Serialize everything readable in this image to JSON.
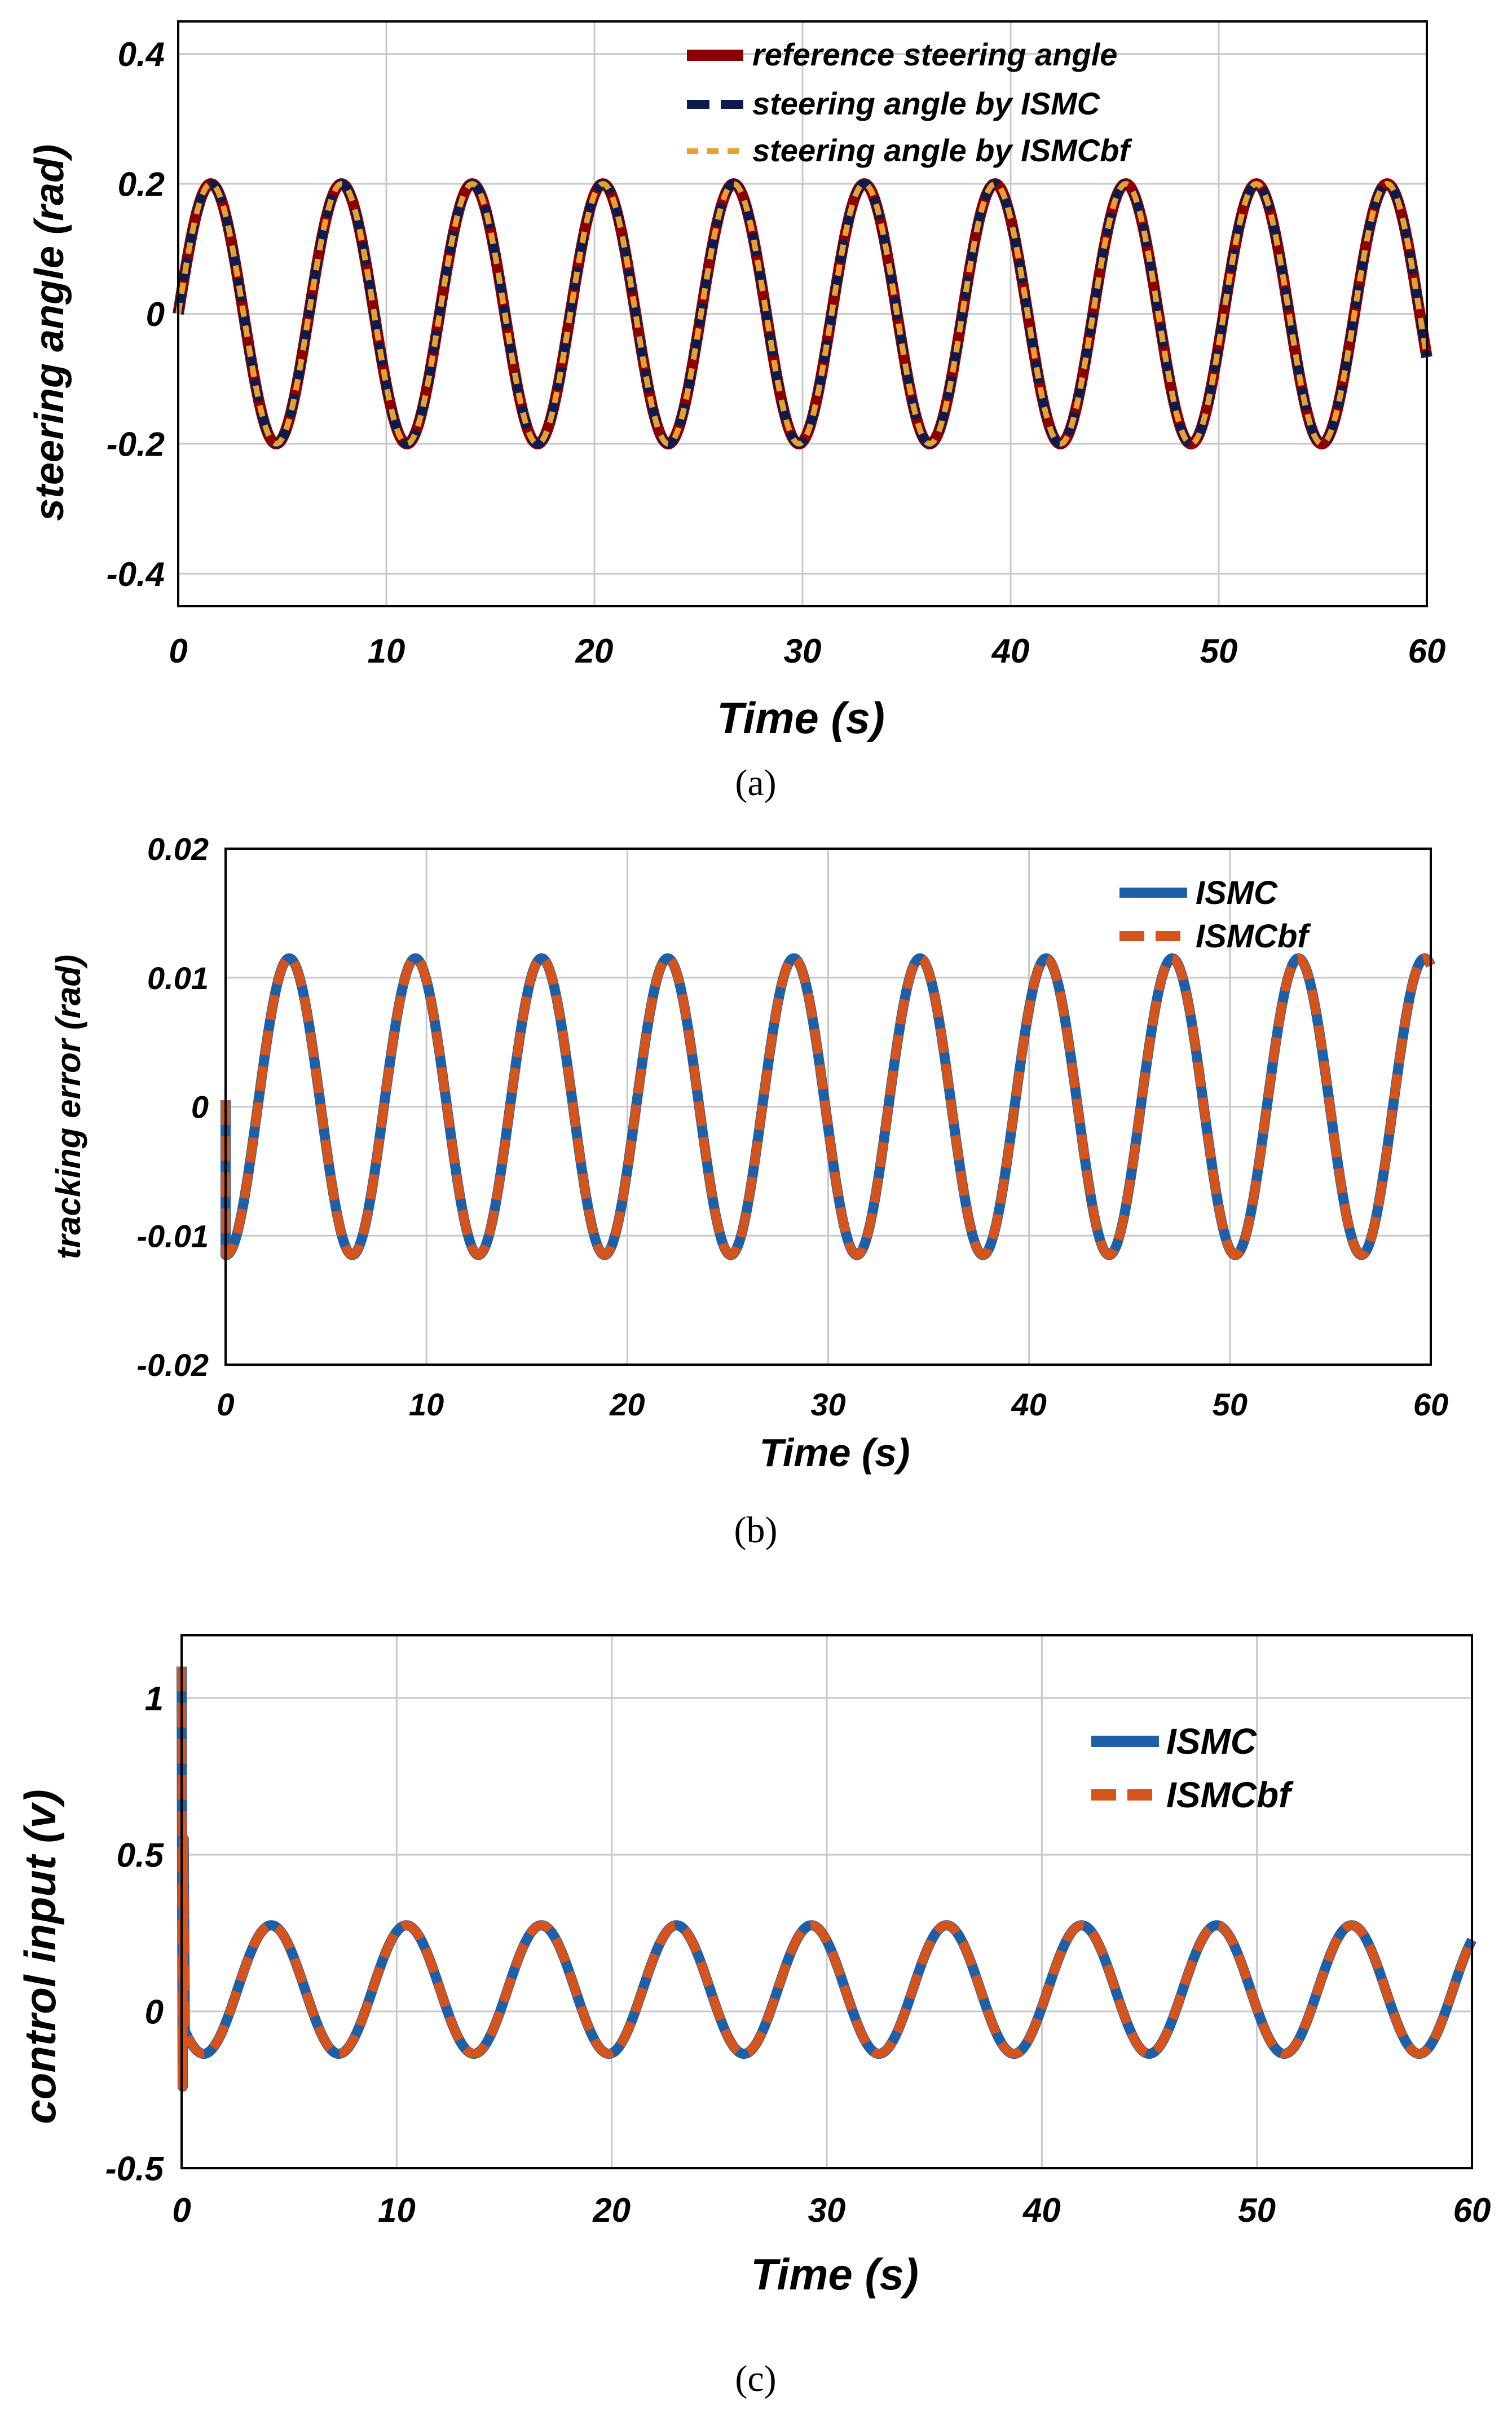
{
  "colors": {
    "reference": "#8b0000",
    "ismc_a": "#0d1a4d",
    "ismcbf_a": "#e8a030",
    "ismc": "#1f5fa8",
    "ismcbf": "#d4541c",
    "grid": "#c8c8c8"
  },
  "chart_data": [
    {
      "id": "a",
      "type": "line",
      "caption": "(a)",
      "xlabel": "Time (s)",
      "ylabel": "steering angle (rad)",
      "xlim": [
        0,
        60
      ],
      "ylim": [
        -0.45,
        0.45
      ],
      "xticks": [
        0,
        10,
        20,
        30,
        40,
        50,
        60
      ],
      "xtick_labels": [
        "0",
        "10",
        "20",
        "30",
        "40",
        "50",
        "60"
      ],
      "yticks": [
        0.4,
        0.2,
        0,
        -0.2,
        -0.4
      ],
      "ytick_labels": [
        "0.4",
        "0.2",
        "0",
        "-0.2",
        "-0.4"
      ],
      "legend_position": "top-center",
      "series": [
        {
          "name": "reference steering angle",
          "model": "sine",
          "amplitude": 0.2,
          "period_s": 6.28,
          "phase": 0,
          "style": "solid",
          "color": "#8b0000"
        },
        {
          "name": "steering angle by ISMC",
          "model": "sine",
          "amplitude": 0.2,
          "period_s": 6.28,
          "phase": 0,
          "style": "dashed",
          "color": "#0d1a4d"
        },
        {
          "name": "steering angle by ISMCbf",
          "model": "sine",
          "amplitude": 0.2,
          "period_s": 6.28,
          "phase": 0,
          "style": "dashed",
          "color": "#e8a030"
        }
      ]
    },
    {
      "id": "b",
      "type": "line",
      "caption": "(b)",
      "xlabel": "Time (s)",
      "ylabel": "tracking error (rad)",
      "xlim": [
        0,
        60
      ],
      "ylim": [
        -0.02,
        0.02
      ],
      "xticks": [
        0,
        10,
        20,
        30,
        40,
        50,
        60
      ],
      "xtick_labels": [
        "0",
        "10",
        "20",
        "30",
        "40",
        "50",
        "60"
      ],
      "yticks": [
        0.02,
        0.01,
        0,
        -0.01,
        -0.02
      ],
      "ytick_labels": [
        "0.02",
        "0.01",
        "0",
        "-0.01",
        "-0.02"
      ],
      "legend_position": "top-right",
      "series": [
        {
          "name": "ISMC",
          "model": "sine",
          "amplitude": 0.0115,
          "period_s": 6.28,
          "phase": -1.6,
          "style": "solid",
          "color": "#1f5fa8"
        },
        {
          "name": "ISMCbf",
          "model": "sine",
          "amplitude": 0.0115,
          "period_s": 6.28,
          "phase": -1.6,
          "style": "dashed",
          "color": "#d4541c"
        }
      ]
    },
    {
      "id": "c",
      "type": "line",
      "caption": "(c)",
      "xlabel": "Time (s)",
      "ylabel": "control input (v)",
      "xlim": [
        0,
        60
      ],
      "ylim": [
        -0.5,
        1.2
      ],
      "xticks": [
        0,
        10,
        20,
        30,
        40,
        50,
        60
      ],
      "xtick_labels": [
        "0",
        "10",
        "20",
        "30",
        "40",
        "50",
        "60"
      ],
      "yticks": [
        1,
        0.5,
        0,
        -0.5
      ],
      "ytick_labels": [
        "1",
        "0.5",
        "0",
        "-0.5"
      ],
      "legend_position": "right",
      "initial_spike": {
        "max": 1.1,
        "min": -0.24
      },
      "series": [
        {
          "name": "ISMC",
          "model": "offset_sine",
          "amplitude": 0.205,
          "offset": 0.07,
          "period_s": 6.28,
          "phase": -2.6,
          "style": "solid",
          "color": "#1f5fa8"
        },
        {
          "name": "ISMCbf",
          "model": "offset_sine",
          "amplitude": 0.205,
          "offset": 0.07,
          "period_s": 6.28,
          "phase": -2.6,
          "style": "dashed",
          "color": "#d4541c"
        }
      ]
    }
  ]
}
